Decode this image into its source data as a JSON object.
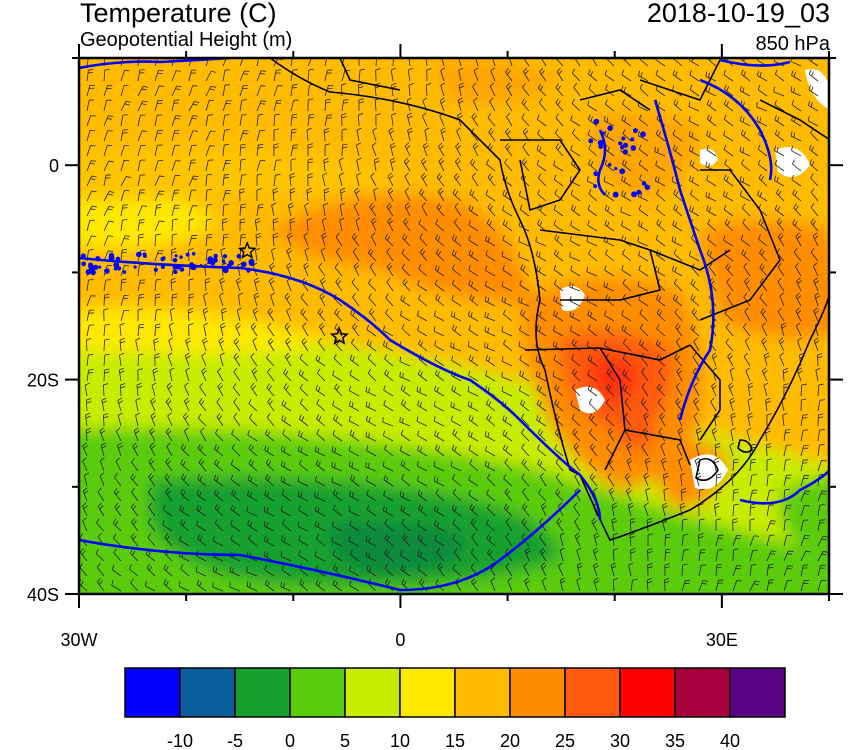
{
  "header": {
    "title": "Temperature (C)",
    "subtitle": "Geopotential Height (m)",
    "datetime": "2018-10-19_03",
    "level": "850 hPa"
  },
  "axes": {
    "y_ticks": [
      {
        "lat": 0,
        "label": "0"
      },
      {
        "lat": -20,
        "label": "20S"
      },
      {
        "lat": -40,
        "label": "40S"
      }
    ],
    "x_ticks": [
      {
        "lon": -30,
        "label": "30W"
      },
      {
        "lon": 0,
        "label": "0"
      },
      {
        "lon": 30,
        "label": "30E"
      }
    ],
    "lon_range": [
      -30,
      40
    ],
    "lat_range": [
      -40,
      10
    ]
  },
  "colorbar": {
    "colors": [
      "#0000ff",
      "#0c5d9c",
      "#16a02f",
      "#5acc0e",
      "#c8ec00",
      "#ffe800",
      "#ffbb00",
      "#ff8d00",
      "#ff5a10",
      "#ff0000",
      "#a8003c",
      "#5c0085"
    ],
    "labels": [
      "-10",
      "-5",
      "0",
      "5",
      "10",
      "15",
      "20",
      "25",
      "30",
      "35",
      "40"
    ]
  },
  "markers": [
    {
      "name": "station-star-1",
      "lon": -14.3,
      "lat": -8
    },
    {
      "name": "station-star-2",
      "lon": -5.7,
      "lat": -16
    }
  ],
  "colors": {
    "contour": "#0000ff",
    "border": "#000000",
    "wind_barb": "#222222"
  }
}
